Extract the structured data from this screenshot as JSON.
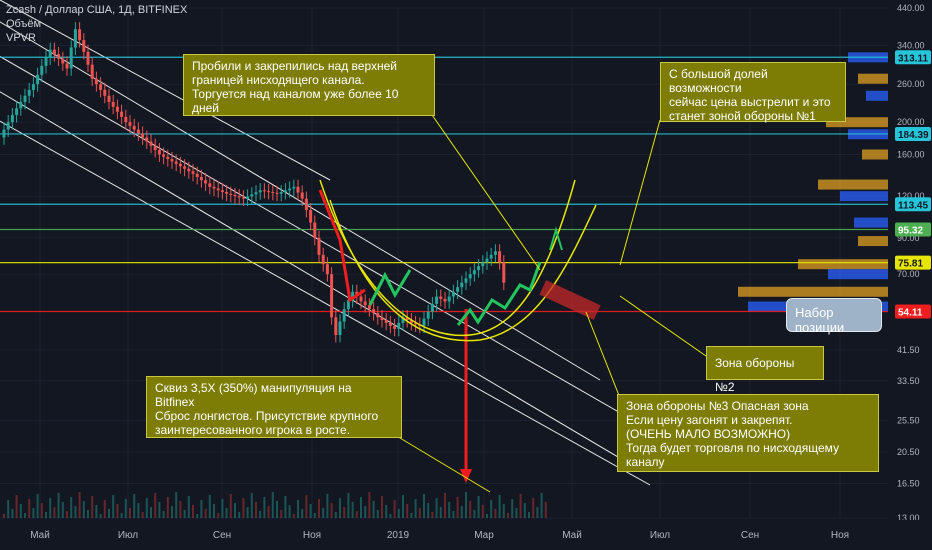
{
  "header": {
    "symbol_line": "Zcash / Доллар США, 1Д, BITFINEX",
    "volume_label": "Объём",
    "vpvr_label": "VPVR"
  },
  "annotations": {
    "top_left": "Пробили и закрепились над  верхней\nграницей нисходящего канала.\nТоргуется над каналом уже более 10 дней",
    "top_right": "С большой долей возможности\nсейчас цена выстрелит и это\nстанет зоной обороны №1",
    "zone2": "Зона обороны №2",
    "bottom_left": "Сквиз 3,5Х (350%) манипуляция на Bitfinex\nСброс лонгистов. Присутствие крупного\n заинтересованного игрока в росте.",
    "zone3": "Зона обороны №3 Опасная зона\nЕсли цену загонят и закрепят.\n(ОЧЕНЬ МАЛО ВОЗМОЖНО)\nТогда будет торговля по нисходящему каналу",
    "position_label": "Набор позиции"
  },
  "colors": {
    "background": "#131722",
    "up_candle": "#26a69a",
    "down_candle": "#ef5350",
    "callout_bg": "#7d7d06",
    "arrow_green": "#22c55e",
    "arrow_red": "#ef1d1d"
  },
  "chart_data": {
    "type": "candlestick",
    "title": "Zcash / Доллар США, 1Д, BITFINEX",
    "y_scale": "log",
    "ylim": [
      13.0,
      440.0
    ],
    "y_ticks": [
      "440.00",
      "340.00",
      "260.00",
      "200.00",
      "160.00",
      "120.00",
      "90.00",
      "70.00",
      "54.00",
      "41.50",
      "33.50",
      "25.50",
      "20.50",
      "16.50",
      "13.00"
    ],
    "x_ticks": [
      "Май",
      "Июл",
      "Сен",
      "Ноя",
      "2019",
      "Мар",
      "Май",
      "Июл",
      "Сен",
      "Ноя"
    ],
    "price_tags": [
      {
        "value": "313.11",
        "color": "#26c6da",
        "text_color": "#131722"
      },
      {
        "value": "184.39",
        "color": "#26c6da",
        "text_color": "#131722"
      },
      {
        "value": "113.45",
        "color": "#26c6da",
        "text_color": "#131722"
      },
      {
        "value": "95.32",
        "color": "#4caf50",
        "text_color": "#ffffff"
      },
      {
        "value": "75.81",
        "color": "#e6e600",
        "text_color": "#131722"
      },
      {
        "value": "54.11",
        "color": "#ef1d1d",
        "text_color": "#ffffff"
      }
    ],
    "price_path": [
      [
        0,
        180
      ],
      [
        8,
        260
      ],
      [
        12,
        330
      ],
      [
        16,
        290
      ],
      [
        18,
        380
      ],
      [
        22,
        270
      ],
      [
        26,
        230
      ],
      [
        30,
        200
      ],
      [
        34,
        180
      ],
      [
        38,
        160
      ],
      [
        42,
        150
      ],
      [
        46,
        140
      ],
      [
        50,
        128
      ],
      [
        54,
        122
      ],
      [
        58,
        118
      ],
      [
        62,
        125
      ],
      [
        66,
        122
      ],
      [
        70,
        128
      ],
      [
        72,
        118
      ],
      [
        74,
        100
      ],
      [
        76,
        80
      ],
      [
        78,
        70
      ],
      [
        79,
        52
      ],
      [
        80,
        46
      ],
      [
        82,
        55
      ],
      [
        84,
        62
      ],
      [
        86,
        58
      ],
      [
        88,
        55
      ],
      [
        90,
        52
      ],
      [
        92,
        50
      ],
      [
        94,
        48
      ],
      [
        96,
        52
      ],
      [
        98,
        50
      ],
      [
        100,
        49
      ],
      [
        102,
        54
      ],
      [
        104,
        60
      ],
      [
        106,
        58
      ],
      [
        108,
        62
      ],
      [
        110,
        66
      ],
      [
        112,
        70
      ],
      [
        114,
        74
      ],
      [
        116,
        78
      ],
      [
        118,
        82
      ],
      [
        119,
        76
      ],
      [
        120,
        66
      ]
    ],
    "squeeze_wick": [
      [
        110,
        55
      ],
      [
        110,
        17
      ]
    ]
  }
}
